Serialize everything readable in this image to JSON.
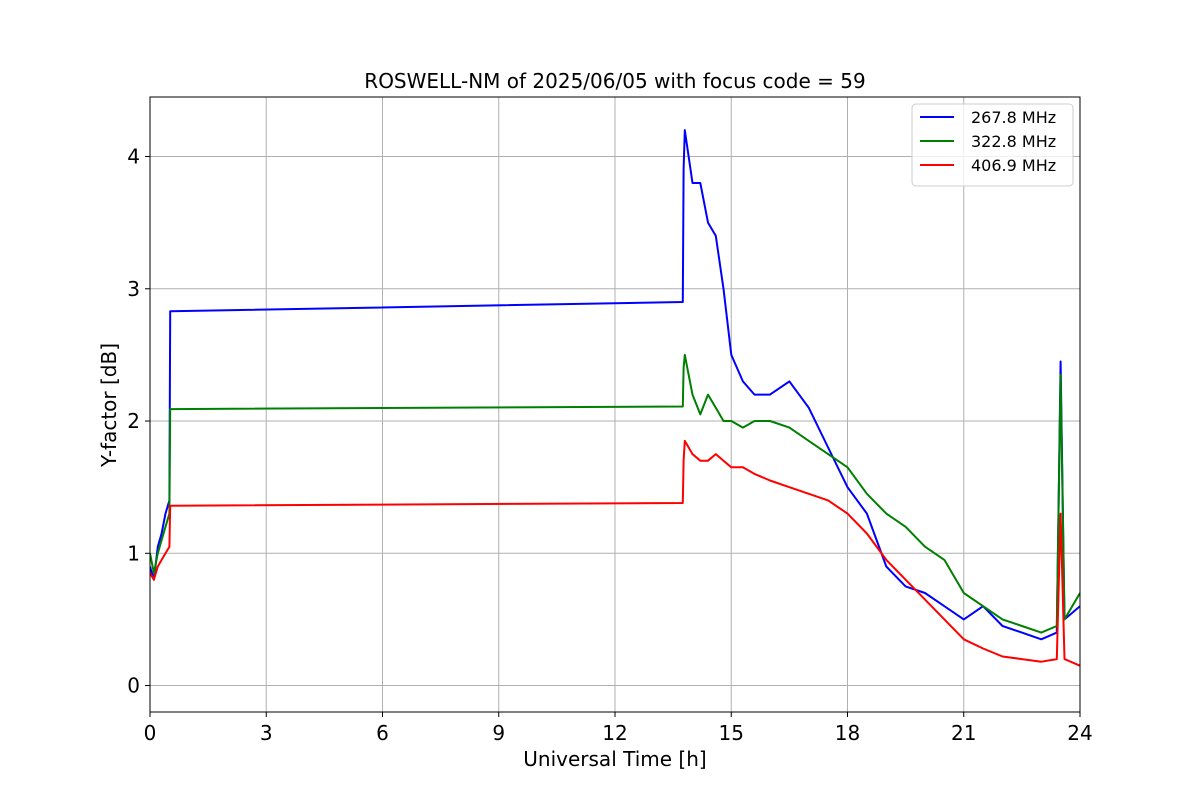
{
  "chart_data": {
    "type": "line",
    "title": "ROSWELL-NM of 2025/06/05 with focus code = 59",
    "xlabel": "Universal Time [h]",
    "ylabel": "Y-factor [dB]",
    "xlim": [
      0,
      24
    ],
    "ylim": [
      -0.2,
      4.45
    ],
    "xticks": [
      0,
      3,
      6,
      9,
      12,
      15,
      18,
      21,
      24
    ],
    "yticks": [
      0,
      1,
      2,
      3,
      4
    ],
    "grid": true,
    "legend_position": "top-right",
    "series": [
      {
        "name": "267.8 MHz",
        "color": "#0000ff",
        "x": [
          0,
          0.1,
          0.2,
          0.3,
          0.4,
          0.5,
          0.52,
          13.75,
          13.77,
          13.8,
          14.0,
          14.2,
          14.4,
          14.6,
          14.8,
          15.0,
          15.3,
          15.6,
          16.0,
          16.5,
          17.0,
          17.5,
          18.0,
          18.5,
          19.0,
          19.5,
          20.0,
          20.5,
          21.0,
          21.5,
          22.0,
          22.5,
          23.0,
          23.4,
          23.5,
          23.6,
          24.0
        ],
        "y": [
          0.9,
          0.8,
          1.05,
          1.15,
          1.3,
          1.4,
          2.83,
          2.9,
          3.9,
          4.2,
          3.8,
          3.8,
          3.5,
          3.4,
          3.0,
          2.5,
          2.3,
          2.2,
          2.2,
          2.3,
          2.1,
          1.8,
          1.5,
          1.3,
          0.9,
          0.75,
          0.7,
          0.6,
          0.5,
          0.6,
          0.45,
          0.4,
          0.35,
          0.4,
          2.45,
          0.5,
          0.6
        ]
      },
      {
        "name": "322.8 MHz",
        "color": "#008000",
        "x": [
          0,
          0.1,
          0.2,
          0.3,
          0.4,
          0.5,
          0.52,
          13.75,
          13.77,
          13.8,
          14.0,
          14.2,
          14.4,
          14.6,
          14.8,
          15.0,
          15.3,
          15.6,
          16.0,
          16.5,
          17.0,
          17.5,
          18.0,
          18.5,
          19.0,
          19.5,
          20.0,
          20.5,
          21.0,
          21.5,
          22.0,
          22.5,
          23.0,
          23.4,
          23.5,
          23.6,
          24.0
        ],
        "y": [
          1.0,
          0.85,
          1.0,
          1.1,
          1.2,
          1.3,
          2.09,
          2.11,
          2.4,
          2.5,
          2.2,
          2.05,
          2.2,
          2.1,
          2.0,
          2.0,
          1.95,
          2.0,
          2.0,
          1.95,
          1.85,
          1.75,
          1.65,
          1.45,
          1.3,
          1.2,
          1.05,
          0.95,
          0.7,
          0.6,
          0.5,
          0.45,
          0.4,
          0.45,
          2.35,
          0.5,
          0.7
        ]
      },
      {
        "name": "406.9 MHz",
        "color": "#ff0000",
        "x": [
          0,
          0.1,
          0.2,
          0.3,
          0.4,
          0.5,
          0.52,
          13.75,
          13.77,
          13.8,
          14.0,
          14.2,
          14.4,
          14.6,
          14.8,
          15.0,
          15.3,
          15.6,
          16.0,
          16.5,
          17.0,
          17.5,
          18.0,
          18.5,
          19.0,
          19.5,
          20.0,
          20.5,
          21.0,
          21.5,
          22.0,
          22.5,
          23.0,
          23.4,
          23.5,
          23.6,
          24.0
        ],
        "y": [
          0.85,
          0.8,
          0.9,
          0.95,
          1.0,
          1.05,
          1.36,
          1.38,
          1.7,
          1.85,
          1.75,
          1.7,
          1.7,
          1.75,
          1.7,
          1.65,
          1.65,
          1.6,
          1.55,
          1.5,
          1.45,
          1.4,
          1.3,
          1.15,
          0.95,
          0.8,
          0.65,
          0.5,
          0.35,
          0.28,
          0.22,
          0.2,
          0.18,
          0.2,
          1.3,
          0.2,
          0.15
        ]
      }
    ]
  }
}
